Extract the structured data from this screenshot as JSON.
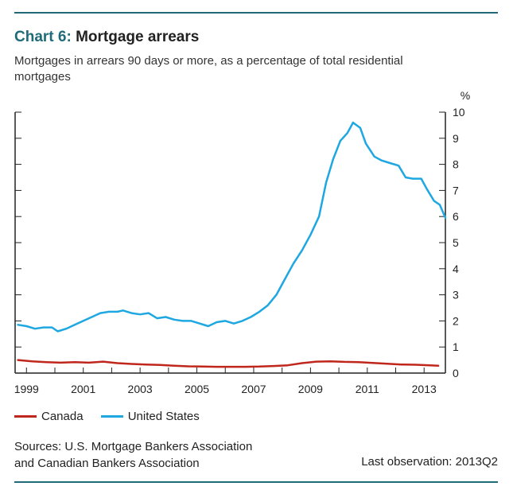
{
  "header": {
    "chart_number": "Chart 6:",
    "title": "Mortgage arrears",
    "subtitle": "Mortgages in arrears 90 days or more, as a percentage of total residential mortgages"
  },
  "footer": {
    "sources": [
      "Sources: U.S. Mortgage Bankers Association",
      "and Canadian Bankers Association"
    ],
    "last_observation": "Last observation: 2013Q2"
  },
  "colors": {
    "canada": "#c0271c",
    "us": "#1ea7e1",
    "rule": "#1f6b78",
    "axis": "#222222"
  },
  "chart_data": {
    "type": "line",
    "title": "Mortgage arrears",
    "ylabel": "%",
    "ylim": [
      0,
      10
    ],
    "yticks": [
      "0",
      "1",
      "2",
      "3",
      "4",
      "5",
      "6",
      "7",
      "8",
      "9",
      "10"
    ],
    "xlim": [
      1998.6,
      2013.75
    ],
    "xticks": [
      "1999",
      "2001",
      "2003",
      "2005",
      "2007",
      "2009",
      "2011",
      "2013"
    ],
    "legend_position": "bottom",
    "series": [
      {
        "name": "Canada",
        "color": "#c0271c",
        "points": [
          [
            1998.7,
            0.5
          ],
          [
            1999.2,
            0.45
          ],
          [
            1999.7,
            0.42
          ],
          [
            2000.2,
            0.4
          ],
          [
            2000.7,
            0.42
          ],
          [
            2001.2,
            0.4
          ],
          [
            2001.7,
            0.44
          ],
          [
            2002.2,
            0.38
          ],
          [
            2002.7,
            0.35
          ],
          [
            2003.2,
            0.33
          ],
          [
            2003.7,
            0.31
          ],
          [
            2004.2,
            0.28
          ],
          [
            2004.7,
            0.26
          ],
          [
            2005.2,
            0.25
          ],
          [
            2005.7,
            0.24
          ],
          [
            2006.2,
            0.24
          ],
          [
            2006.7,
            0.24
          ],
          [
            2007.2,
            0.25
          ],
          [
            2007.7,
            0.27
          ],
          [
            2008.2,
            0.3
          ],
          [
            2008.7,
            0.38
          ],
          [
            2009.2,
            0.44
          ],
          [
            2009.7,
            0.45
          ],
          [
            2010.2,
            0.43
          ],
          [
            2010.7,
            0.42
          ],
          [
            2011.2,
            0.39
          ],
          [
            2011.7,
            0.36
          ],
          [
            2012.2,
            0.33
          ],
          [
            2012.7,
            0.32
          ],
          [
            2013.2,
            0.3
          ],
          [
            2013.5,
            0.28
          ]
        ]
      },
      {
        "name": "United States",
        "color": "#1ea7e1",
        "points": [
          [
            1998.7,
            1.85
          ],
          [
            1999.0,
            1.8
          ],
          [
            1999.3,
            1.7
          ],
          [
            1999.6,
            1.75
          ],
          [
            1999.9,
            1.75
          ],
          [
            2000.1,
            1.6
          ],
          [
            2000.4,
            1.7
          ],
          [
            2000.7,
            1.85
          ],
          [
            2001.0,
            2.0
          ],
          [
            2001.3,
            2.15
          ],
          [
            2001.6,
            2.3
          ],
          [
            2001.9,
            2.35
          ],
          [
            2002.2,
            2.35
          ],
          [
            2002.4,
            2.4
          ],
          [
            2002.7,
            2.3
          ],
          [
            2003.0,
            2.25
          ],
          [
            2003.3,
            2.3
          ],
          [
            2003.6,
            2.1
          ],
          [
            2003.9,
            2.15
          ],
          [
            2004.2,
            2.05
          ],
          [
            2004.5,
            2.0
          ],
          [
            2004.8,
            2.0
          ],
          [
            2005.1,
            1.9
          ],
          [
            2005.4,
            1.8
          ],
          [
            2005.7,
            1.95
          ],
          [
            2006.0,
            2.0
          ],
          [
            2006.3,
            1.9
          ],
          [
            2006.6,
            2.0
          ],
          [
            2006.9,
            2.15
          ],
          [
            2007.2,
            2.35
          ],
          [
            2007.5,
            2.6
          ],
          [
            2007.8,
            3.0
          ],
          [
            2008.1,
            3.6
          ],
          [
            2008.4,
            4.2
          ],
          [
            2008.7,
            4.7
          ],
          [
            2009.0,
            5.3
          ],
          [
            2009.3,
            6.0
          ],
          [
            2009.55,
            7.3
          ],
          [
            2009.8,
            8.2
          ],
          [
            2010.05,
            8.9
          ],
          [
            2010.3,
            9.2
          ],
          [
            2010.5,
            9.6
          ],
          [
            2010.75,
            9.4
          ],
          [
            2010.95,
            8.8
          ],
          [
            2011.25,
            8.3
          ],
          [
            2011.5,
            8.15
          ],
          [
            2011.8,
            8.05
          ],
          [
            2012.1,
            7.95
          ],
          [
            2012.35,
            7.5
          ],
          [
            2012.6,
            7.45
          ],
          [
            2012.9,
            7.45
          ],
          [
            2013.1,
            7.05
          ],
          [
            2013.35,
            6.6
          ],
          [
            2013.55,
            6.45
          ],
          [
            2013.75,
            5.95
          ]
        ]
      }
    ]
  }
}
